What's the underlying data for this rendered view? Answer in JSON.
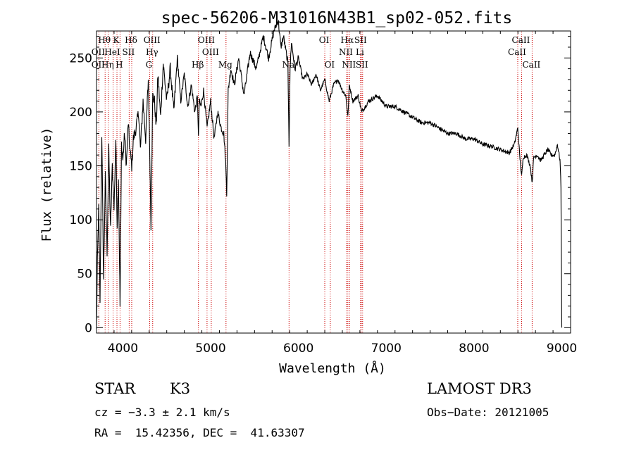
{
  "chart_data": {
    "type": "line",
    "title": "spec-56206-M31016N43B1_sp02-052.fits",
    "xlabel": "Wavelength (Å)",
    "ylabel": "Flux (relative)",
    "xlim": [
      3700,
      9100
    ],
    "ylim": [
      -5,
      275
    ],
    "x_ticks": [
      4000,
      5000,
      6000,
      7000,
      8000,
      9000
    ],
    "y_ticks": [
      0,
      50,
      100,
      150,
      200,
      250
    ],
    "series": [
      {
        "name": "flux",
        "x": [
          3700,
          3710,
          3725,
          3740,
          3760,
          3780,
          3800,
          3820,
          3840,
          3860,
          3880,
          3900,
          3920,
          3935,
          3950,
          3968,
          3985,
          4000,
          4020,
          4040,
          4060,
          4080,
          4101,
          4120,
          4150,
          4180,
          4200,
          4230,
          4260,
          4290,
          4305,
          4320,
          4340,
          4360,
          4380,
          4400,
          4430,
          4460,
          4500,
          4540,
          4580,
          4620,
          4660,
          4700,
          4740,
          4780,
          4820,
          4850,
          4861,
          4870,
          4890,
          4920,
          4960,
          5000,
          5040,
          5080,
          5120,
          5150,
          5170,
          5183,
          5200,
          5230,
          5270,
          5320,
          5380,
          5450,
          5520,
          5600,
          5660,
          5720,
          5770,
          5800,
          5830,
          5860,
          5880,
          5893,
          5905,
          5920,
          5960,
          6000,
          6050,
          6100,
          6150,
          6200,
          6250,
          6300,
          6350,
          6400,
          6450,
          6500,
          6540,
          6563,
          6580,
          6620,
          6680,
          6720,
          6800,
          6900,
          7000,
          7100,
          7200,
          7300,
          7400,
          7500,
          7600,
          7700,
          7800,
          7900,
          8000,
          8100,
          8200,
          8300,
          8400,
          8460,
          8498,
          8520,
          8542,
          8560,
          8600,
          8640,
          8662,
          8680,
          8720,
          8760,
          8800,
          8840,
          8880,
          8920,
          8950,
          8980,
          8990,
          9000
        ],
        "values": [
          -3,
          60,
          110,
          25,
          180,
          45,
          140,
          70,
          165,
          90,
          150,
          110,
          175,
          95,
          140,
          20,
          170,
          155,
          180,
          150,
          190,
          165,
          150,
          175,
          185,
          200,
          165,
          210,
          175,
          230,
          170,
          95,
          215,
          210,
          185,
          235,
          195,
          245,
          210,
          240,
          200,
          250,
          210,
          235,
          205,
          225,
          200,
          215,
          175,
          210,
          205,
          220,
          185,
          210,
          175,
          200,
          185,
          180,
          155,
          125,
          220,
          240,
          225,
          250,
          215,
          255,
          240,
          270,
          250,
          275,
          285,
          260,
          270,
          255,
          245,
          170,
          240,
          265,
          240,
          250,
          230,
          235,
          225,
          235,
          220,
          230,
          210,
          225,
          230,
          220,
          215,
          195,
          225,
          210,
          215,
          200,
          210,
          215,
          205,
          205,
          200,
          195,
          190,
          190,
          185,
          180,
          180,
          175,
          175,
          170,
          168,
          165,
          162,
          170,
          185,
          160,
          140,
          158,
          160,
          150,
          135,
          158,
          160,
          155,
          160,
          165,
          160,
          160,
          170,
          155,
          130,
          0
        ]
      }
    ],
    "spectral_lines": [
      {
        "label": "Hθ",
        "wavelength": 3798,
        "row": 0
      },
      {
        "label": "K",
        "wavelength": 3933,
        "row": 0
      },
      {
        "label": "Hδ",
        "wavelength": 4101,
        "row": 0
      },
      {
        "label": "OIII",
        "wavelength": 4340,
        "row": 0
      },
      {
        "label": "OIII",
        "wavelength": 4959,
        "row": 0
      },
      {
        "label": "OI",
        "wavelength": 6300,
        "row": 0
      },
      {
        "label": "Hα",
        "wavelength": 6563,
        "row": 0
      },
      {
        "label": "SII",
        "wavelength": 6716,
        "row": 0
      },
      {
        "label": "CaII",
        "wavelength": 8542,
        "row": 0
      },
      {
        "label": "OII",
        "wavelength": 3727,
        "row": 1
      },
      {
        "label": "HeI",
        "wavelength": 3889,
        "row": 1
      },
      {
        "label": "SII",
        "wavelength": 4072,
        "row": 1
      },
      {
        "label": "Hγ",
        "wavelength": 4340,
        "row": 1
      },
      {
        "label": "OIII",
        "wavelength": 5007,
        "row": 1
      },
      {
        "label": "NII",
        "wavelength": 6548,
        "row": 1
      },
      {
        "label": "Li",
        "wavelength": 6708,
        "row": 1
      },
      {
        "label": "CaII",
        "wavelength": 8498,
        "row": 1
      },
      {
        "label": "OII",
        "wavelength": 3727,
        "row": 2
      },
      {
        "label": "Hη",
        "wavelength": 3835,
        "row": 2
      },
      {
        "label": "H",
        "wavelength": 3968,
        "row": 2
      },
      {
        "label": "G",
        "wavelength": 4305,
        "row": 2
      },
      {
        "label": "Hβ",
        "wavelength": 4861,
        "row": 2
      },
      {
        "label": "Mg",
        "wavelength": 5175,
        "row": 2
      },
      {
        "label": "Na",
        "wavelength": 5893,
        "row": 2
      },
      {
        "label": "OI",
        "wavelength": 6363,
        "row": 2
      },
      {
        "label": "NII",
        "wavelength": 6583,
        "row": 2
      },
      {
        "label": "SII",
        "wavelength": 6731,
        "row": 2
      },
      {
        "label": "CaII",
        "wavelength": 8662,
        "row": 2
      }
    ]
  },
  "info": {
    "class": "STAR",
    "subclass": "K3",
    "survey": "LAMOST DR3",
    "cz": "cz = −3.3 ± 2.1 km/s",
    "obs_date": "Obs−Date: 20121005",
    "radec": "RA =  15.42356, DEC =  41.63307"
  },
  "colors": {
    "spectrum": "#000000",
    "line_marker": "#cc0000"
  }
}
